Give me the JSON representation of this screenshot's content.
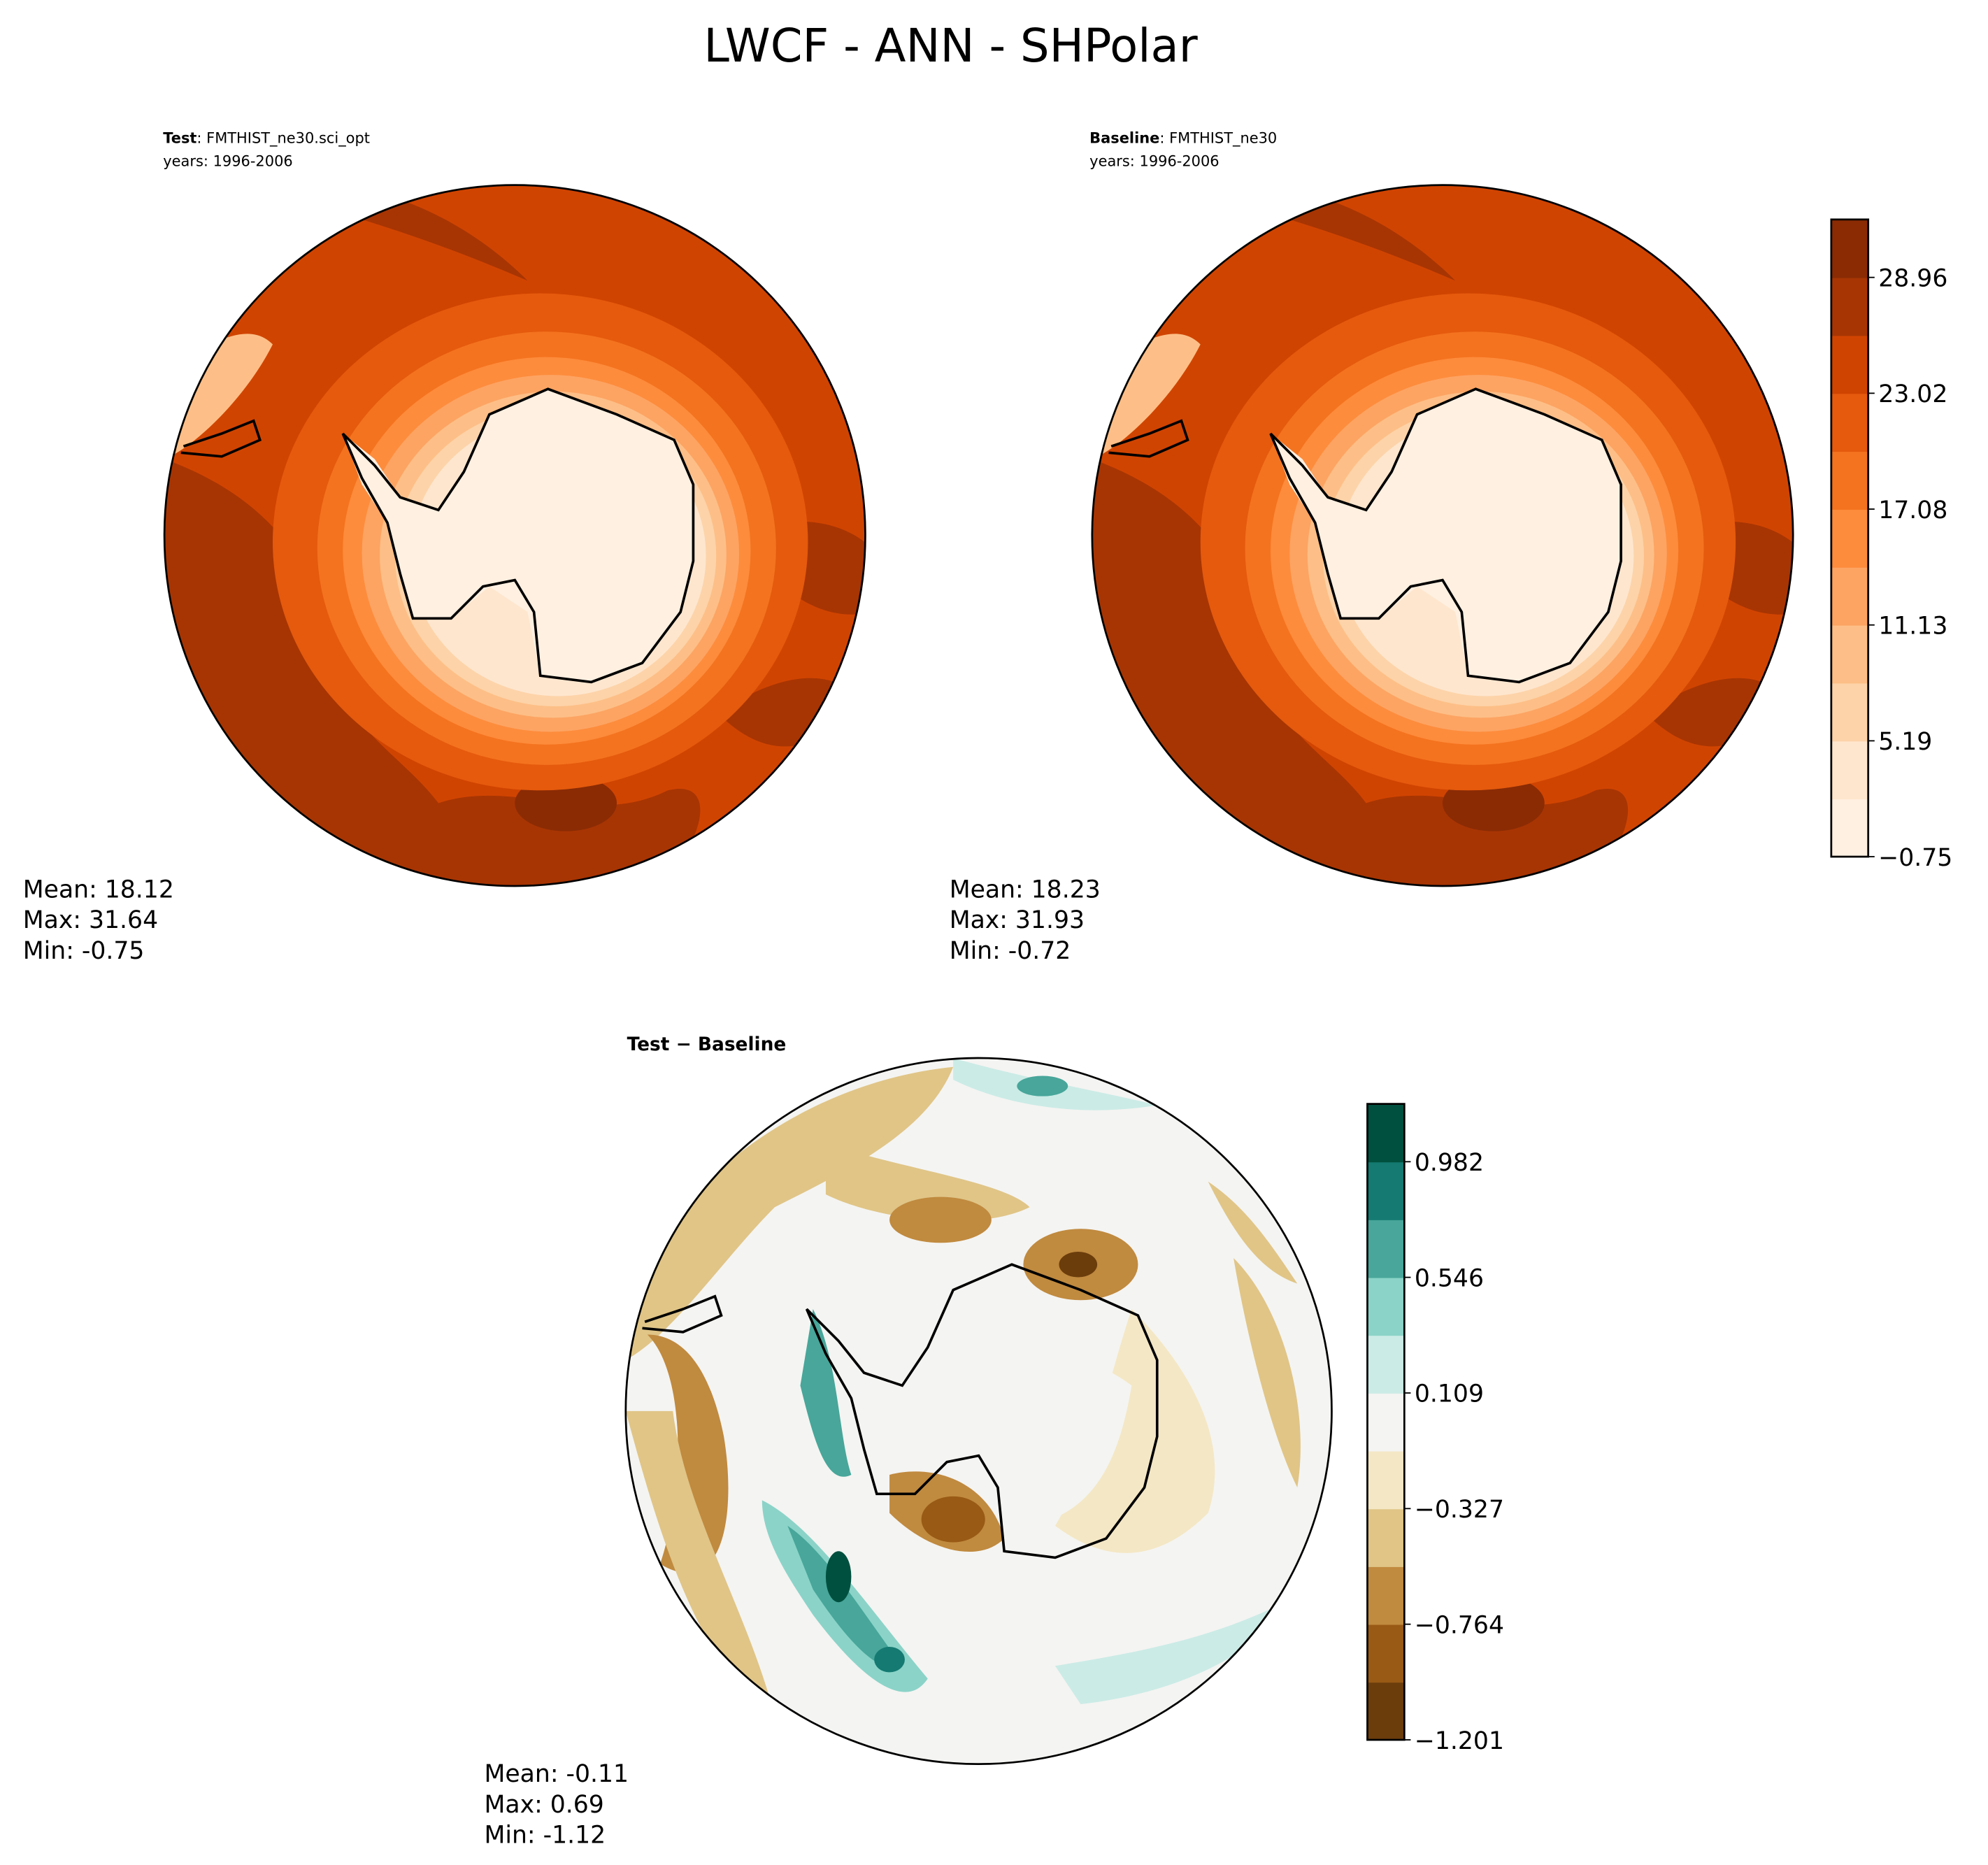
{
  "chart_data": [
    {
      "type": "heatmap",
      "projection": "south-polar-stereographic",
      "panel": "test",
      "label_bold": "Test",
      "label_rest": ": FMTHIST_ne30.sci_opt",
      "years": "years: 1996-2006",
      "stats": {
        "mean": "Mean: 18.12",
        "max": "Max: 31.64",
        "min": "Min: -0.75"
      }
    },
    {
      "type": "heatmap",
      "projection": "south-polar-stereographic",
      "panel": "baseline",
      "label_bold": "Baseline",
      "label_rest": ": FMTHIST_ne30",
      "years": "years: 1996-2006",
      "stats": {
        "mean": "Mean: 18.23",
        "max": "Max: 31.93",
        "min": "Min: -0.72"
      },
      "colorbar": {
        "ticks": [
          "−0.75",
          "5.19",
          "11.13",
          "17.08",
          "23.02",
          "28.96"
        ],
        "range": [
          -0.75,
          31.93
        ],
        "colors": [
          "#fff0e1",
          "#fee6ce",
          "#fdd3a9",
          "#fdbf87",
          "#fda463",
          "#fd8c3c",
          "#f4731f",
          "#e55a0d",
          "#d04401",
          "#a73503",
          "#8a2b04"
        ]
      }
    },
    {
      "type": "heatmap",
      "projection": "south-polar-stereographic",
      "panel": "difference",
      "label": "Test − Baseline",
      "stats": {
        "mean": "Mean: -0.11",
        "max": "Max:  0.69",
        "min": "Min: -1.12"
      },
      "colorbar": {
        "ticks": [
          "−1.201",
          "−0.764",
          "−0.327",
          "0.109",
          "0.546",
          "0.982"
        ],
        "range": [
          -1.201,
          1.2
        ],
        "colors": [
          "#6b3d0b",
          "#985a15",
          "#c08a3f",
          "#e0c587",
          "#f4e7c5",
          "#f4f4f2",
          "#cbebe6",
          "#8bd3c8",
          "#48a69a",
          "#147a72",
          "#00503f"
        ]
      }
    }
  ],
  "title": "LWCF - ANN - SHPolar"
}
